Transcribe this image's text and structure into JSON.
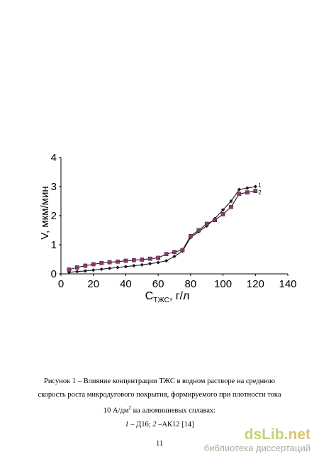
{
  "chart_data": {
    "type": "line",
    "xlabel_main": "C",
    "xlabel_sub": "ТЖС",
    "xlabel_unit": ", г/л",
    "ylabel": "V, мкм/мин",
    "xlim": [
      0,
      140
    ],
    "ylim": [
      0,
      4
    ],
    "x_ticks": [
      0,
      20,
      40,
      60,
      80,
      100,
      120,
      140
    ],
    "y_ticks": [
      0,
      1,
      2,
      3,
      4
    ],
    "grid": false,
    "series": [
      {
        "name": "1",
        "marker": "diamond",
        "color": "#1a1a1a",
        "x": [
          5,
          10,
          15,
          20,
          25,
          30,
          35,
          40,
          45,
          50,
          55,
          60,
          65,
          70,
          75,
          80,
          85,
          90,
          95,
          100,
          105,
          110,
          115,
          120
        ],
        "y": [
          0.05,
          0.08,
          0.1,
          0.13,
          0.16,
          0.19,
          0.22,
          0.25,
          0.28,
          0.31,
          0.35,
          0.39,
          0.45,
          0.6,
          0.78,
          1.25,
          1.45,
          1.65,
          1.9,
          2.2,
          2.5,
          2.9,
          2.95,
          3.0
        ]
      },
      {
        "name": "2",
        "marker": "square",
        "color": "#8a3a6a",
        "x": [
          5,
          10,
          15,
          20,
          25,
          30,
          35,
          40,
          45,
          50,
          55,
          60,
          65,
          70,
          75,
          80,
          85,
          90,
          95,
          100,
          105,
          110,
          115,
          120
        ],
        "y": [
          0.15,
          0.22,
          0.28,
          0.33,
          0.37,
          0.4,
          0.42,
          0.45,
          0.47,
          0.49,
          0.52,
          0.55,
          0.68,
          0.75,
          0.82,
          1.3,
          1.5,
          1.72,
          1.85,
          2.05,
          2.3,
          2.75,
          2.8,
          2.85
        ]
      }
    ]
  },
  "caption": {
    "line1": "Рисунок 1 – Влияние концентрации ТЖС в водном растворе на среднюю",
    "line2": "скорость роста микродугового покрытия, формируемого при плотности тока",
    "line3_pre": "10 А/дм",
    "line3_sup": "2",
    "line3_post": " на алюминиевых сплавах:",
    "line4_n1": "1",
    "line4_t1": " – Д16; ",
    "line4_n2": "2",
    "line4_t2": " –АК12 [14]"
  },
  "page_number": "11",
  "watermark": {
    "logo_main": "dsLib",
    "logo_suffix": ".net",
    "subtitle": "библиотека диссертаций"
  }
}
